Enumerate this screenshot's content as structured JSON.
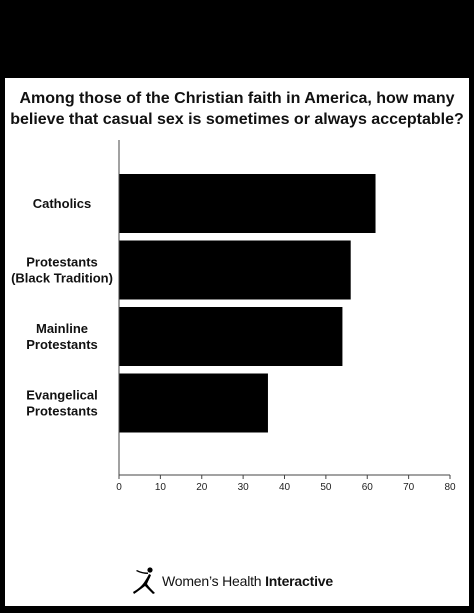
{
  "chart_data": {
    "type": "bar",
    "orientation": "horizontal",
    "title_lines": [
      "Among those of the Christian faith in America, how many",
      "believe that casual sex is sometimes or always acceptable?"
    ],
    "categories": [
      [
        "Catholics"
      ],
      [
        "Protestants",
        "(Black Tradition)"
      ],
      [
        "Mainline",
        "Protestants"
      ],
      [
        "Evangelical",
        "Protestants"
      ]
    ],
    "values": [
      62,
      56,
      54,
      36
    ],
    "xlim": [
      0,
      80
    ],
    "xticks": [
      0,
      10,
      20,
      30,
      40,
      50,
      60,
      70,
      80
    ],
    "bar_color": "#000000",
    "grid": false
  },
  "footer": {
    "brand_regular": "Women’s Health ",
    "brand_bold": "Interactive",
    "logo_icon": "dancer-figure-icon"
  }
}
